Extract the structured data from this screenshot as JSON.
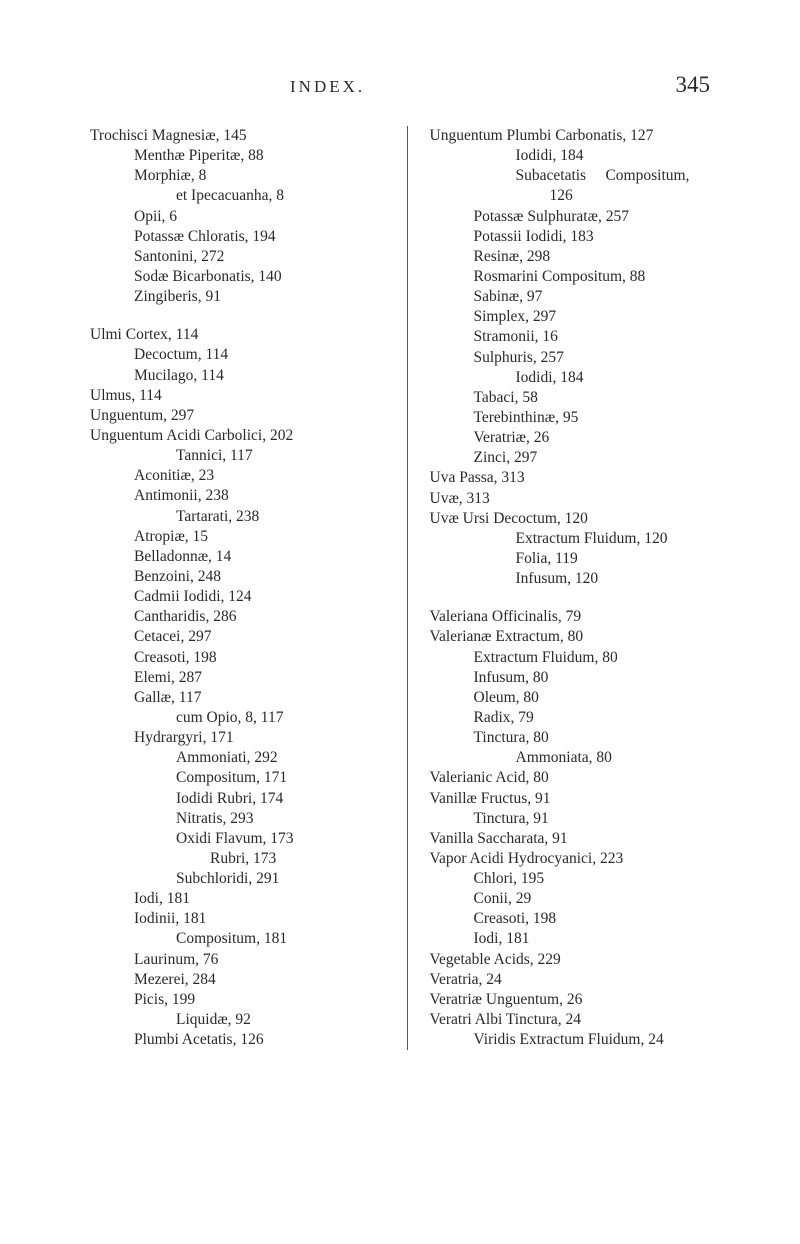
{
  "header": {
    "title": "INDEX.",
    "page_number": "345"
  },
  "columns": {
    "left": [
      {
        "t": "Trochisci Magnesiæ, 145",
        "l": 0
      },
      {
        "t": "Menthæ Piperitæ, 88",
        "l": 1
      },
      {
        "t": "Morphiæ, 8",
        "l": 1
      },
      {
        "t": "et Ipecacuanha, 8",
        "l": 2
      },
      {
        "t": "Opii, 6",
        "l": 1
      },
      {
        "t": "Potassæ Chloratis, 194",
        "l": 1
      },
      {
        "t": "Santonini, 272",
        "l": 1
      },
      {
        "t": "Sodæ Bicarbonatis, 140",
        "l": 1
      },
      {
        "t": "Zingiberis, 91",
        "l": 1
      },
      {
        "blank": true
      },
      {
        "t": "Ulmi Cortex, 114",
        "l": 0
      },
      {
        "t": "Decoctum, 114",
        "l": 1
      },
      {
        "t": "Mucilago, 114",
        "l": 1
      },
      {
        "t": "Ulmus, 114",
        "l": 0
      },
      {
        "t": "Unguentum, 297",
        "l": 0
      },
      {
        "t": "Unguentum Acidi Carbolici, 202",
        "l": 0
      },
      {
        "t": "Tannici, 117",
        "l": 2
      },
      {
        "t": "Aconitiæ, 23",
        "l": 1
      },
      {
        "t": "Antimonii, 238",
        "l": 1
      },
      {
        "t": "Tartarati, 238",
        "l": 2
      },
      {
        "t": "Atropiæ, 15",
        "l": 1
      },
      {
        "t": "Belladonnæ, 14",
        "l": 1
      },
      {
        "t": "Benzoini, 248",
        "l": 1
      },
      {
        "t": "Cadmii Iodidi, 124",
        "l": 1
      },
      {
        "t": "Cantharidis, 286",
        "l": 1
      },
      {
        "t": "Cetacei, 297",
        "l": 1
      },
      {
        "t": "Creasoti, 198",
        "l": 1
      },
      {
        "t": "Elemi, 287",
        "l": 1
      },
      {
        "t": "Gallæ, 117",
        "l": 1
      },
      {
        "t": "cum Opio, 8, 117",
        "l": 2
      },
      {
        "t": "Hydrargyri, 171",
        "l": 1
      },
      {
        "t": "Ammoniati, 292",
        "l": 2
      },
      {
        "t": "Compositum, 171",
        "l": 2
      },
      {
        "t": "Iodidi Rubri, 174",
        "l": 2
      },
      {
        "t": "Nitratis, 293",
        "l": 2
      },
      {
        "t": "Oxidi Flavum, 173",
        "l": 2
      },
      {
        "t": "Rubri, 173",
        "l": 3
      },
      {
        "t": "Subchloridi, 291",
        "l": 2
      },
      {
        "t": "Iodi, 181",
        "l": 1
      },
      {
        "t": "Iodinii, 181",
        "l": 1
      },
      {
        "t": "Compositum, 181",
        "l": 2
      },
      {
        "t": "Laurinum, 76",
        "l": 1
      },
      {
        "t": "Mezerei, 284",
        "l": 1
      },
      {
        "t": "Picis, 199",
        "l": 1
      },
      {
        "t": "Liquidæ, 92",
        "l": 2
      },
      {
        "t": "Plumbi Acetatis, 126",
        "l": 1
      }
    ],
    "right": [
      {
        "t": "Unguentum Plumbi Carbonatis, 127",
        "l": 0
      },
      {
        "t": "Iodidi, 184",
        "l": 2
      },
      {
        "t": "Subacetatis     Compositum,",
        "l": 2
      },
      {
        "t": "126",
        "l": 3
      },
      {
        "t": "Potassæ Sulphuratæ, 257",
        "l": 1
      },
      {
        "t": "Potassii Iodidi, 183",
        "l": 1
      },
      {
        "t": "Resinæ, 298",
        "l": 1
      },
      {
        "t": "Rosmarini Compositum, 88",
        "l": 1
      },
      {
        "t": "Sabinæ, 97",
        "l": 1
      },
      {
        "t": "Simplex, 297",
        "l": 1
      },
      {
        "t": "Stramonii, 16",
        "l": 1
      },
      {
        "t": "Sulphuris, 257",
        "l": 1
      },
      {
        "t": "Iodidi, 184",
        "l": 2
      },
      {
        "t": "Tabaci, 58",
        "l": 1
      },
      {
        "t": "Terebinthinæ, 95",
        "l": 1
      },
      {
        "t": "Veratriæ, 26",
        "l": 1
      },
      {
        "t": "Zinci, 297",
        "l": 1
      },
      {
        "t": "Uva Passa, 313",
        "l": 0
      },
      {
        "t": "Uvæ, 313",
        "l": 0
      },
      {
        "t": "Uvæ Ursi Decoctum, 120",
        "l": 0
      },
      {
        "t": "Extractum Fluidum, 120",
        "l": 2
      },
      {
        "t": "Folia, 119",
        "l": 2
      },
      {
        "t": "Infusum, 120",
        "l": 2
      },
      {
        "blank": true
      },
      {
        "t": "Valeriana Officinalis, 79",
        "l": 0
      },
      {
        "t": "Valerianæ Extractum, 80",
        "l": 0
      },
      {
        "t": "Extractum Fluidum, 80",
        "l": 1
      },
      {
        "t": "Infusum, 80",
        "l": 1
      },
      {
        "t": "Oleum, 80",
        "l": 1
      },
      {
        "t": "Radix, 79",
        "l": 1
      },
      {
        "t": "Tinctura, 80",
        "l": 1
      },
      {
        "t": "Ammoniata, 80",
        "l": 2
      },
      {
        "t": "Valerianic Acid, 80",
        "l": 0
      },
      {
        "t": "Vanillæ Fructus, 91",
        "l": 0
      },
      {
        "t": "Tinctura, 91",
        "l": 1
      },
      {
        "t": "Vanilla Saccharata, 91",
        "l": 0
      },
      {
        "t": "Vapor Acidi Hydrocyanici, 223",
        "l": 0
      },
      {
        "t": "Chlori, 195",
        "l": 1
      },
      {
        "t": "Conii, 29",
        "l": 1
      },
      {
        "t": "Creasoti, 198",
        "l": 1
      },
      {
        "t": "Iodi, 181",
        "l": 1
      },
      {
        "t": "Vegetable Acids, 229",
        "l": 0
      },
      {
        "t": "Veratria, 24",
        "l": 0
      },
      {
        "t": "Veratriæ Unguentum, 26",
        "l": 0
      },
      {
        "t": "Veratri Albi Tinctura, 24",
        "l": 0
      },
      {
        "t": "Viridis Extractum Fluidum, 24",
        "l": 1
      }
    ]
  }
}
